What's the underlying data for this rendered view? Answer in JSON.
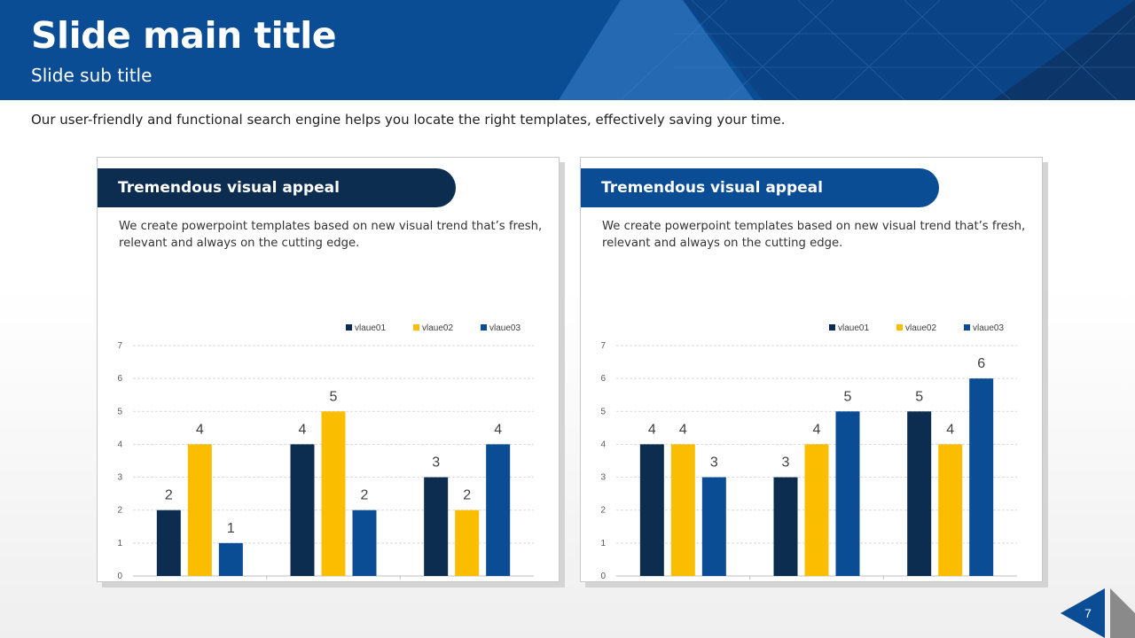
{
  "slide": {
    "title": "Slide main title",
    "subtitle": "Slide sub title",
    "description": "Our user-friendly and functional search engine helps you locate the right templates, effectively saving your time.",
    "page_number": "7"
  },
  "colors": {
    "header_bg": "#0b4d95",
    "series": [
      "#0d2d50",
      "#fbbd00",
      "#0b4d95"
    ]
  },
  "cards": [
    {
      "heading": "Tremendous visual appeal",
      "text": "We create powerpoint templates based on new visual trend that’s fresh, relevant and always on the cutting edge."
    },
    {
      "heading": "Tremendous visual appeal",
      "text": "We create powerpoint templates based on new visual trend that’s fresh, relevant and always on the cutting edge."
    }
  ],
  "chart_data": [
    {
      "type": "bar",
      "categories": [
        "vlaue01",
        "vlaue02",
        "vlaue03"
      ],
      "series": [
        {
          "name": "vlaue01",
          "values": [
            2,
            4,
            3
          ]
        },
        {
          "name": "vlaue02",
          "values": [
            4,
            5,
            2
          ]
        },
        {
          "name": "vlaue03",
          "values": [
            1,
            2,
            4
          ]
        }
      ],
      "ylim": [
        0,
        7
      ],
      "yticks": [
        0,
        1,
        2,
        3,
        4,
        5,
        6,
        7
      ],
      "grid": true,
      "legend": "top-right"
    },
    {
      "type": "bar",
      "categories": [
        "vlaue01",
        "vlaue02",
        "vlaue03"
      ],
      "series": [
        {
          "name": "vlaue01",
          "values": [
            4,
            3,
            5
          ]
        },
        {
          "name": "vlaue02",
          "values": [
            4,
            4,
            4
          ]
        },
        {
          "name": "vlaue03",
          "values": [
            3,
            5,
            6
          ]
        }
      ],
      "ylim": [
        0,
        7
      ],
      "yticks": [
        0,
        1,
        2,
        3,
        4,
        5,
        6,
        7
      ],
      "grid": true,
      "legend": "top-right"
    }
  ]
}
